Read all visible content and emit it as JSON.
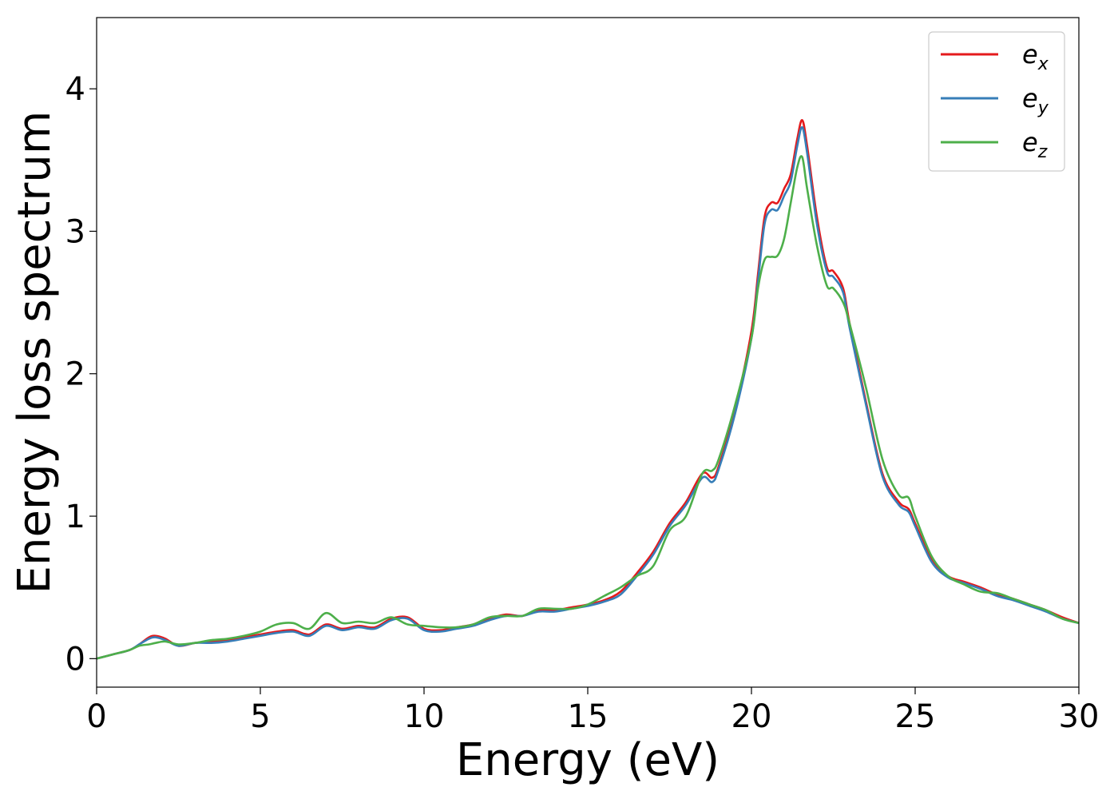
{
  "chart_data": {
    "type": "line",
    "title": "",
    "xlabel": "Energy (eV)",
    "ylabel": "Energy loss spectrum",
    "xlim": [
      0,
      30
    ],
    "ylim": [
      -0.2,
      4.5
    ],
    "xticks": [
      0,
      5,
      10,
      15,
      20,
      25,
      30
    ],
    "xtick_labels": [
      "0",
      "5",
      "10",
      "15",
      "20",
      "25",
      "30"
    ],
    "yticks": [
      0,
      1,
      2,
      3,
      4
    ],
    "ytick_labels": [
      "0",
      "1",
      "2",
      "3",
      "4"
    ],
    "grid": false,
    "legend_position": "top-right",
    "series": [
      {
        "name": "e",
        "subscript": "x",
        "color": "#e41a1c",
        "x": [
          0,
          0.5,
          1.0,
          1.3,
          1.6,
          1.8,
          2.1,
          2.5,
          3.0,
          3.5,
          4.0,
          4.5,
          5.0,
          5.5,
          6.0,
          6.5,
          7.0,
          7.5,
          8.0,
          8.5,
          9.0,
          9.5,
          10.0,
          10.5,
          11.0,
          11.5,
          12.0,
          12.5,
          13.0,
          13.5,
          14.0,
          14.5,
          15.0,
          15.5,
          16.0,
          16.5,
          17.0,
          17.5,
          18.0,
          18.5,
          18.8,
          19.0,
          19.5,
          20.0,
          20.2,
          20.4,
          20.6,
          20.8,
          21.0,
          21.2,
          21.4,
          21.55,
          21.7,
          22.0,
          22.3,
          22.5,
          22.8,
          23.0,
          23.5,
          24.0,
          24.5,
          24.8,
          25.0,
          25.5,
          26.0,
          26.5,
          27.0,
          27.5,
          28.0,
          28.5,
          29.0,
          29.5,
          30.0
        ],
        "y": [
          0.0,
          0.03,
          0.06,
          0.1,
          0.15,
          0.16,
          0.14,
          0.09,
          0.11,
          0.12,
          0.13,
          0.15,
          0.17,
          0.19,
          0.2,
          0.17,
          0.24,
          0.21,
          0.23,
          0.22,
          0.28,
          0.29,
          0.21,
          0.2,
          0.22,
          0.24,
          0.28,
          0.31,
          0.3,
          0.34,
          0.34,
          0.36,
          0.38,
          0.41,
          0.47,
          0.6,
          0.75,
          0.95,
          1.1,
          1.3,
          1.27,
          1.35,
          1.75,
          2.3,
          2.7,
          3.1,
          3.2,
          3.2,
          3.3,
          3.4,
          3.65,
          3.78,
          3.6,
          3.1,
          2.75,
          2.72,
          2.6,
          2.35,
          1.8,
          1.3,
          1.1,
          1.05,
          0.95,
          0.7,
          0.58,
          0.54,
          0.5,
          0.45,
          0.42,
          0.38,
          0.34,
          0.29,
          0.25
        ]
      },
      {
        "name": "e",
        "subscript": "y",
        "color": "#377eb8",
        "x": [
          0,
          0.5,
          1.0,
          1.3,
          1.6,
          1.8,
          2.1,
          2.5,
          3.0,
          3.5,
          4.0,
          4.5,
          5.0,
          5.5,
          6.0,
          6.5,
          7.0,
          7.5,
          8.0,
          8.5,
          9.0,
          9.5,
          10.0,
          10.5,
          11.0,
          11.5,
          12.0,
          12.5,
          13.0,
          13.5,
          14.0,
          14.5,
          15.0,
          15.5,
          16.0,
          16.5,
          17.0,
          17.5,
          18.0,
          18.5,
          18.8,
          19.0,
          19.5,
          20.0,
          20.2,
          20.4,
          20.6,
          20.8,
          21.0,
          21.2,
          21.4,
          21.55,
          21.7,
          22.0,
          22.3,
          22.5,
          22.8,
          23.0,
          23.5,
          24.0,
          24.5,
          24.8,
          25.0,
          25.5,
          26.0,
          26.5,
          27.0,
          27.5,
          28.0,
          28.5,
          29.0,
          29.5,
          30.0
        ],
        "y": [
          0.0,
          0.03,
          0.06,
          0.1,
          0.14,
          0.15,
          0.13,
          0.09,
          0.11,
          0.11,
          0.12,
          0.14,
          0.16,
          0.18,
          0.19,
          0.16,
          0.23,
          0.2,
          0.22,
          0.21,
          0.27,
          0.28,
          0.2,
          0.19,
          0.21,
          0.23,
          0.27,
          0.3,
          0.3,
          0.33,
          0.33,
          0.35,
          0.37,
          0.4,
          0.45,
          0.58,
          0.73,
          0.93,
          1.08,
          1.27,
          1.24,
          1.33,
          1.72,
          2.25,
          2.65,
          3.05,
          3.15,
          3.15,
          3.25,
          3.35,
          3.6,
          3.73,
          3.55,
          3.05,
          2.72,
          2.68,
          2.57,
          2.32,
          1.78,
          1.28,
          1.08,
          1.03,
          0.93,
          0.68,
          0.57,
          0.53,
          0.49,
          0.44,
          0.41,
          0.37,
          0.33,
          0.28,
          0.25
        ]
      },
      {
        "name": "e",
        "subscript": "z",
        "color": "#4daf4a",
        "x": [
          0,
          0.5,
          1.0,
          1.3,
          1.6,
          1.8,
          2.1,
          2.5,
          3.0,
          3.5,
          4.0,
          4.5,
          5.0,
          5.5,
          6.0,
          6.5,
          7.0,
          7.5,
          8.0,
          8.5,
          9.0,
          9.5,
          10.0,
          10.5,
          11.0,
          11.5,
          12.0,
          12.5,
          13.0,
          13.5,
          14.0,
          14.5,
          15.0,
          15.5,
          16.0,
          16.5,
          17.0,
          17.5,
          18.0,
          18.5,
          18.8,
          19.0,
          19.5,
          20.0,
          20.2,
          20.4,
          20.6,
          20.8,
          21.0,
          21.2,
          21.4,
          21.55,
          21.7,
          22.0,
          22.3,
          22.5,
          22.8,
          23.0,
          23.5,
          24.0,
          24.5,
          24.8,
          25.0,
          25.5,
          26.0,
          26.5,
          27.0,
          27.5,
          28.0,
          28.5,
          29.0,
          29.5,
          30.0
        ],
        "y": [
          0.0,
          0.03,
          0.06,
          0.09,
          0.1,
          0.11,
          0.12,
          0.1,
          0.11,
          0.13,
          0.14,
          0.16,
          0.19,
          0.24,
          0.25,
          0.21,
          0.32,
          0.25,
          0.26,
          0.25,
          0.29,
          0.24,
          0.23,
          0.22,
          0.22,
          0.24,
          0.29,
          0.3,
          0.3,
          0.35,
          0.35,
          0.35,
          0.38,
          0.44,
          0.5,
          0.58,
          0.65,
          0.9,
          1.0,
          1.3,
          1.32,
          1.4,
          1.78,
          2.25,
          2.6,
          2.8,
          2.82,
          2.83,
          2.95,
          3.2,
          3.45,
          3.52,
          3.3,
          2.9,
          2.62,
          2.6,
          2.5,
          2.35,
          1.9,
          1.4,
          1.15,
          1.13,
          1.0,
          0.72,
          0.58,
          0.52,
          0.47,
          0.46,
          0.42,
          0.38,
          0.34,
          0.28,
          0.25
        ]
      }
    ]
  }
}
